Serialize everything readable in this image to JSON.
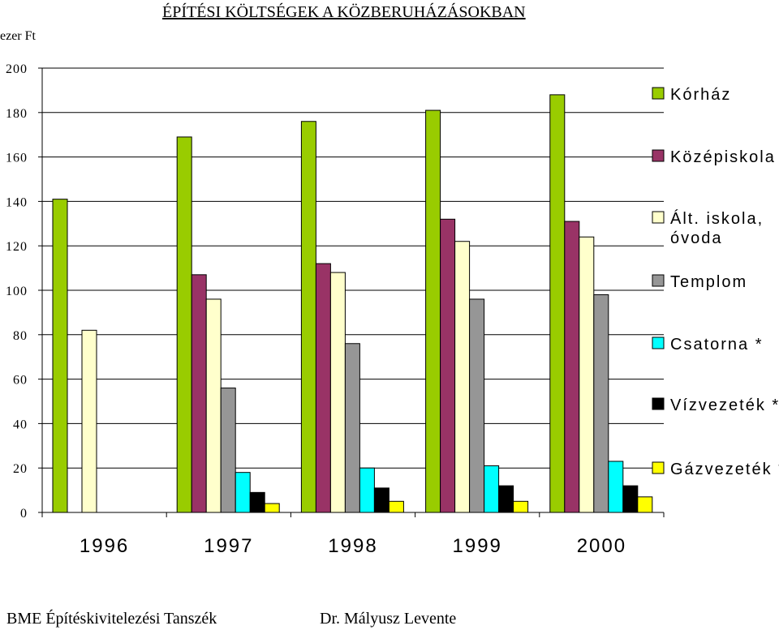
{
  "chart_data": {
    "type": "bar",
    "title": "ÉPÍTÉSI KÖLTSÉGEK A KÖZBERUHÁZÁSOKBAN",
    "ylabel": "ezer Ft",
    "ylim": [
      0,
      200
    ],
    "yticks": [
      "0",
      "20",
      "40",
      "60",
      "80",
      "100",
      "120",
      "140",
      "160",
      "180",
      "200"
    ],
    "categories": [
      "1996",
      "1997",
      "1998",
      "1999",
      "2000"
    ],
    "grid": true,
    "legend_position": "right",
    "series": [
      {
        "name": "Kórház",
        "color": "#99cc00",
        "values": [
          141,
          169,
          176,
          181,
          188
        ]
      },
      {
        "name": "Középiskola",
        "color": "#993366",
        "values": [
          null,
          107,
          112,
          132,
          131
        ]
      },
      {
        "name": "Ált. iskola, óvoda",
        "color": "#ffffcc",
        "values": [
          82,
          96,
          108,
          122,
          124
        ]
      },
      {
        "name": "Templom",
        "color": "#969696",
        "values": [
          null,
          56,
          76,
          96,
          98
        ]
      },
      {
        "name": "Csatorna *",
        "color": "#00ffff",
        "values": [
          null,
          18,
          20,
          21,
          23
        ]
      },
      {
        "name": "Vízvezeték *",
        "color": "#000000",
        "values": [
          null,
          9,
          11,
          12,
          12
        ]
      },
      {
        "name": "Gázvezeték *",
        "color": "#ffff00",
        "values": [
          null,
          4,
          5,
          5,
          7
        ]
      }
    ]
  },
  "footer": {
    "left": "BME Építéskivitelezési Tanszék",
    "right": "Dr. Mályusz Levente"
  }
}
